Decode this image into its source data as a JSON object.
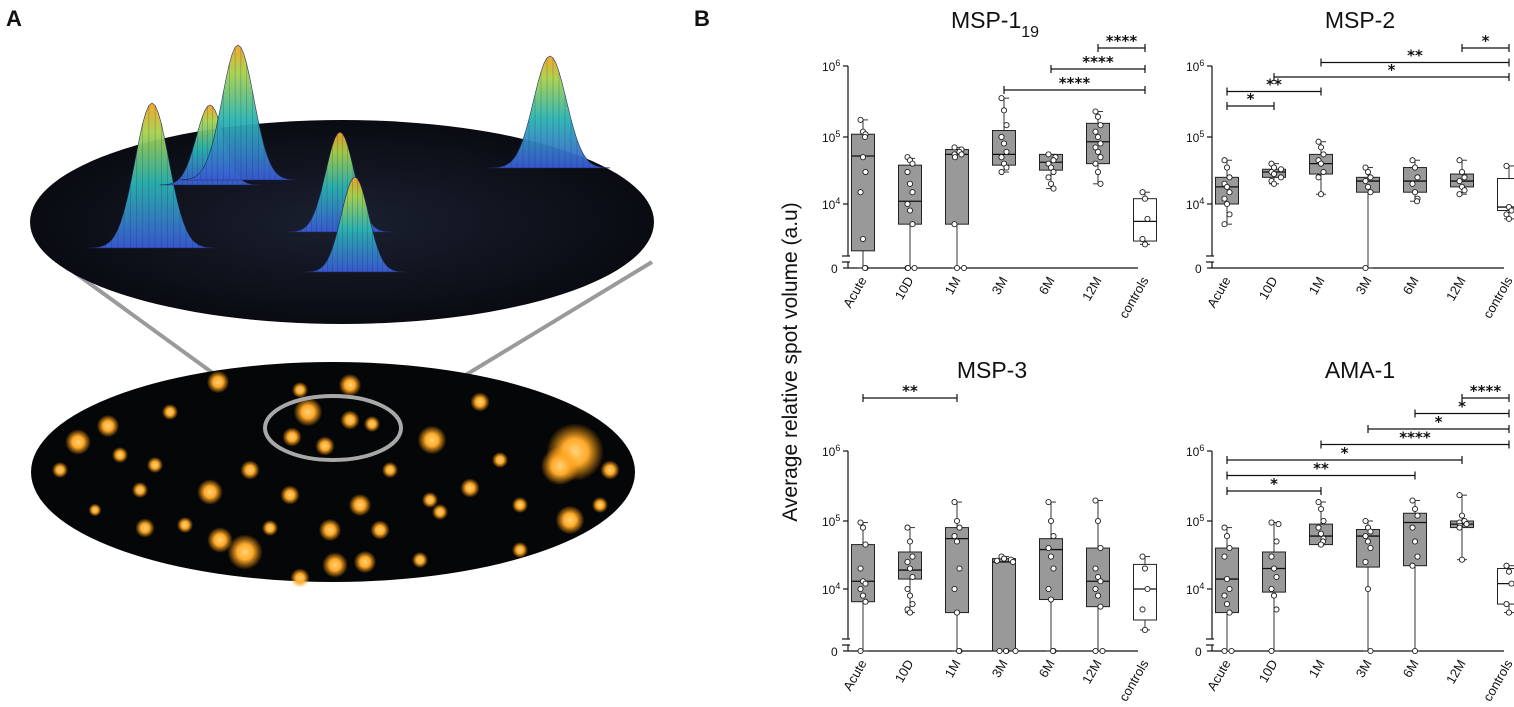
{
  "panels": {
    "a_label": "A",
    "b_label": "B"
  },
  "illustration": {
    "description_name": "3D spot-intensity surface above a fluorescent spot array"
  },
  "chart_data": {
    "type": "box",
    "ylabel": "Average relative spot volume (a.u)",
    "yscale": "log with broken axis at 0",
    "y_ticks": [
      {
        "value": 10000,
        "label": "10",
        "exp": "4"
      },
      {
        "value": 100000,
        "label": "10",
        "exp": "5"
      },
      {
        "value": 1000000,
        "label": "10",
        "exp": "6"
      }
    ],
    "y_zero_label": "0",
    "categories": [
      "Acute",
      "10D",
      "1M",
      "3M",
      "6M",
      "12M",
      "controls"
    ],
    "charts": [
      {
        "title": "MSP-1",
        "title_sub": "19",
        "boxes": [
          {
            "min": 0,
            "q1": 2000,
            "median": 52000,
            "q3": 110000,
            "max": 180000,
            "fill": "#999999"
          },
          {
            "min": 0,
            "q1": 5000,
            "median": 11000,
            "q3": 38000,
            "max": 48000,
            "fill": "#999999"
          },
          {
            "min": 0,
            "q1": 5000,
            "median": 55000,
            "q3": 65000,
            "max": 70000,
            "fill": "#999999"
          },
          {
            "min": 30000,
            "q1": 38000,
            "median": 55000,
            "q3": 125000,
            "max": 380000,
            "fill": "#999999"
          },
          {
            "min": 17000,
            "q1": 32000,
            "median": 42000,
            "q3": 55000,
            "max": 55000,
            "fill": "#999999"
          },
          {
            "min": 20000,
            "q1": 40000,
            "median": 85000,
            "q3": 160000,
            "max": 240000,
            "fill": "#999999"
          },
          {
            "min": 2500,
            "q1": 2800,
            "median": 5500,
            "q3": 12000,
            "max": 15000,
            "fill": "#ffffff"
          }
        ],
        "points": [
          [
            180000,
            120000,
            110000,
            100000,
            50000,
            30000,
            15000,
            3000,
            0,
            0
          ],
          [
            50000,
            45000,
            40000,
            30000,
            20000,
            15000,
            10000,
            8000,
            5000,
            0,
            0,
            0
          ],
          [
            70000,
            65000,
            60000,
            55000,
            55000,
            50000,
            5000,
            0,
            0
          ],
          [
            380000,
            250000,
            150000,
            100000,
            80000,
            60000,
            50000,
            40000,
            35000,
            30000
          ],
          [
            55000,
            50000,
            45000,
            40000,
            35000,
            30000,
            25000,
            20000,
            17000
          ],
          [
            240000,
            200000,
            150000,
            120000,
            100000,
            80000,
            70000,
            60000,
            50000,
            40000,
            30000,
            20000
          ],
          [
            15000,
            12000,
            6000,
            3000,
            2500
          ]
        ],
        "significance": [
          {
            "from": 5,
            "to": 6,
            "stars": "****"
          },
          {
            "from": 4,
            "to": 6,
            "stars": "****"
          },
          {
            "from": 3,
            "to": 6,
            "stars": "****"
          }
        ]
      },
      {
        "title": "MSP-2",
        "title_sub": "",
        "boxes": [
          {
            "min": 5000,
            "q1": 10000,
            "median": 18000,
            "q3": 25000,
            "max": 45000,
            "fill": "#999999"
          },
          {
            "min": 20000,
            "q1": 25000,
            "median": 30000,
            "q3": 33000,
            "max": 40000,
            "fill": "#999999"
          },
          {
            "min": 14000,
            "q1": 28000,
            "median": 40000,
            "q3": 55000,
            "max": 85000,
            "fill": "#999999"
          },
          {
            "min": 0,
            "q1": 15000,
            "median": 22000,
            "q3": 25000,
            "max": 35000,
            "fill": "#999999"
          },
          {
            "min": 11000,
            "q1": 15000,
            "median": 22000,
            "q3": 35000,
            "max": 45000,
            "fill": "#999999"
          },
          {
            "min": 14000,
            "q1": 18000,
            "median": 22000,
            "q3": 28000,
            "max": 45000,
            "fill": "#999999"
          },
          {
            "min": 6000,
            "q1": 8000,
            "median": 9000,
            "q3": 24000,
            "max": 37000,
            "fill": "#ffffff"
          }
        ],
        "points": [
          [
            45000,
            35000,
            25000,
            20000,
            18000,
            15000,
            12000,
            10000,
            7000,
            5000
          ],
          [
            40000,
            35000,
            33000,
            30000,
            28000,
            25000,
            22000,
            20000
          ],
          [
            85000,
            70000,
            55000,
            45000,
            40000,
            30000,
            25000,
            14000
          ],
          [
            35000,
            30000,
            25000,
            22000,
            18000,
            15000,
            0
          ],
          [
            45000,
            35000,
            25000,
            20000,
            15000,
            12000,
            11000
          ],
          [
            45000,
            30000,
            25000,
            22000,
            18000,
            16000,
            14000
          ],
          [
            37000,
            9000,
            8000,
            7000,
            6000
          ]
        ],
        "significance": [
          {
            "from": 5,
            "to": 6,
            "stars": "*"
          },
          {
            "from": 2,
            "to": 6,
            "stars": "**"
          },
          {
            "from": 1,
            "to": 6,
            "stars": "*"
          },
          {
            "from": 0,
            "to": 2,
            "stars": "**"
          },
          {
            "from": 0,
            "to": 1,
            "stars": "*"
          }
        ]
      },
      {
        "title": "MSP-3",
        "title_sub": "",
        "boxes": [
          {
            "min": 0,
            "q1": 6500,
            "median": 13000,
            "q3": 45000,
            "max": 95000,
            "fill": "#999999"
          },
          {
            "min": 4500,
            "q1": 14000,
            "median": 19000,
            "q3": 35000,
            "max": 80000,
            "fill": "#999999"
          },
          {
            "min": 0,
            "q1": 4500,
            "median": 55000,
            "q3": 80000,
            "max": 190000,
            "fill": "#999999"
          },
          {
            "min": 0,
            "q1": 0,
            "median": 25000,
            "q3": 28000,
            "max": 30000,
            "fill": "#999999"
          },
          {
            "min": 0,
            "q1": 7000,
            "median": 38000,
            "q3": 55000,
            "max": 190000,
            "fill": "#999999"
          },
          {
            "min": 0,
            "q1": 5500,
            "median": 13000,
            "q3": 40000,
            "max": 200000,
            "fill": "#999999"
          },
          {
            "min": 2500,
            "q1": 3500,
            "median": 10000,
            "q3": 23000,
            "max": 30000,
            "fill": "#ffffff"
          }
        ],
        "points": [
          [
            95000,
            80000,
            45000,
            20000,
            13000,
            12000,
            10000,
            8000,
            6500,
            0
          ],
          [
            80000,
            50000,
            30000,
            25000,
            20000,
            15000,
            10000,
            8000,
            6000,
            5000,
            4500
          ],
          [
            190000,
            100000,
            80000,
            60000,
            50000,
            20000,
            10000,
            4500,
            0,
            0
          ],
          [
            30000,
            28000,
            27000,
            26000,
            25000,
            0,
            0,
            0,
            0
          ],
          [
            190000,
            100000,
            60000,
            40000,
            30000,
            20000,
            10000,
            7000,
            0,
            0
          ],
          [
            200000,
            100000,
            40000,
            20000,
            15000,
            13000,
            10000,
            8000,
            5500,
            0,
            0
          ],
          [
            30000,
            20000,
            10000,
            5000,
            2500
          ]
        ],
        "significance": [
          {
            "from": 0,
            "to": 2,
            "stars": "**"
          }
        ]
      },
      {
        "title": "AMA-1",
        "title_sub": "",
        "boxes": [
          {
            "min": 0,
            "q1": 4500,
            "median": 14000,
            "q3": 40000,
            "max": 80000,
            "fill": "#999999"
          },
          {
            "min": 0,
            "q1": 9000,
            "median": 20000,
            "q3": 35000,
            "max": 95000,
            "fill": "#999999"
          },
          {
            "min": 45000,
            "q1": 45000,
            "median": 60000,
            "q3": 90000,
            "max": 190000,
            "fill": "#999999"
          },
          {
            "min": 0,
            "q1": 21000,
            "median": 60000,
            "q3": 75000,
            "max": 100000,
            "fill": "#999999"
          },
          {
            "min": 0,
            "q1": 22000,
            "median": 95000,
            "q3": 130000,
            "max": 200000,
            "fill": "#999999"
          },
          {
            "min": 27000,
            "q1": 80000,
            "median": 90000,
            "q3": 100000,
            "max": 240000,
            "fill": "#999999"
          },
          {
            "min": 4500,
            "q1": 6000,
            "median": 12000,
            "q3": 20000,
            "max": 22000,
            "fill": "#ffffff"
          }
        ],
        "points": [
          [
            80000,
            60000,
            40000,
            30000,
            14000,
            10000,
            8000,
            6000,
            4500,
            0,
            0
          ],
          [
            95000,
            90000,
            50000,
            30000,
            20000,
            15000,
            10000,
            8000,
            5000,
            0
          ],
          [
            190000,
            150000,
            100000,
            80000,
            65000,
            55000,
            50000,
            45000
          ],
          [
            100000,
            80000,
            70000,
            60000,
            50000,
            40000,
            25000,
            10000,
            0
          ],
          [
            200000,
            150000,
            120000,
            80000,
            50000,
            30000,
            22000,
            0
          ],
          [
            240000,
            120000,
            100000,
            95000,
            90000,
            85000,
            80000,
            27000
          ],
          [
            22000,
            18000,
            12000,
            6000,
            4500
          ]
        ],
        "significance": [
          {
            "from": 5,
            "to": 6,
            "stars": "****"
          },
          {
            "from": 4,
            "to": 6,
            "stars": "*"
          },
          {
            "from": 3,
            "to": 6,
            "stars": "*"
          },
          {
            "from": 2,
            "to": 6,
            "stars": "****"
          },
          {
            "from": 0,
            "to": 5,
            "stars": "*"
          },
          {
            "from": 0,
            "to": 4,
            "stars": "**"
          },
          {
            "from": 0,
            "to": 2,
            "stars": "*"
          }
        ]
      }
    ]
  }
}
